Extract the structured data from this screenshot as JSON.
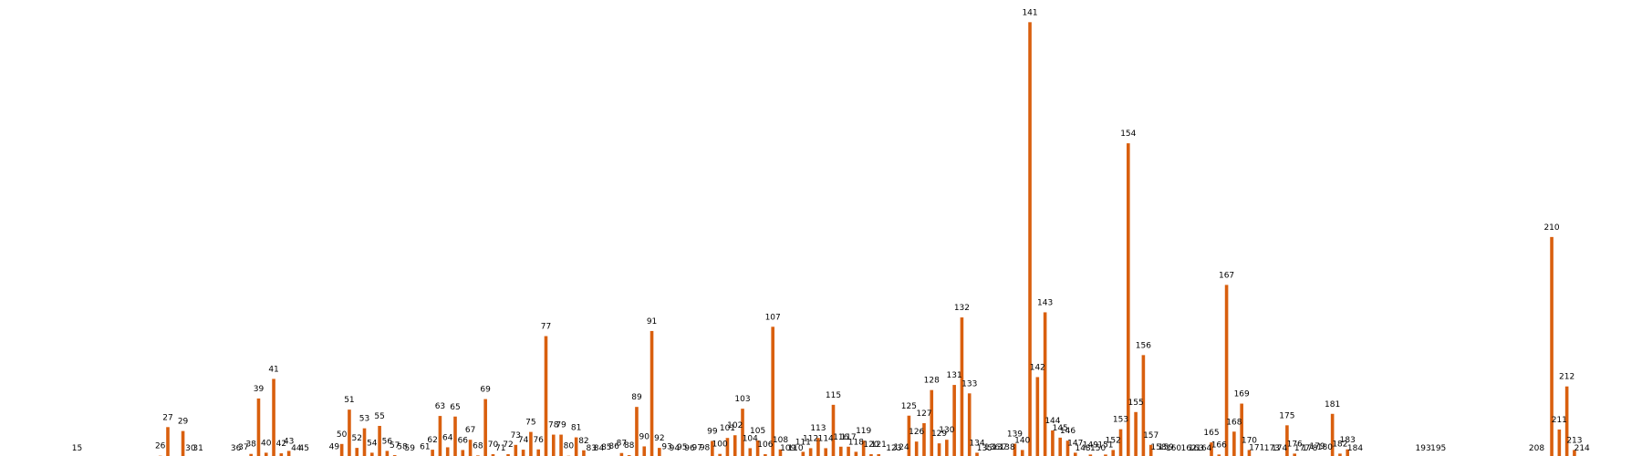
{
  "colors": {
    "bar": "#d95f0e",
    "background": "#ffffff",
    "label": "#000000"
  },
  "chart_data": {
    "type": "bar",
    "title": "",
    "xlabel": "",
    "ylabel": "",
    "ylim": [
      0,
      145
    ],
    "grid": false,
    "legend": "none",
    "points": [
      {
        "label": "15",
        "value": 0.3
      },
      {
        "label": "26",
        "value": 1.0
      },
      {
        "label": "27",
        "value": 10.5
      },
      {
        "label": "29",
        "value": 9.2
      },
      {
        "label": "30",
        "value": 0.1
      },
      {
        "label": "31",
        "value": 0.1
      },
      {
        "label": "36",
        "value": 0.1
      },
      {
        "label": "37",
        "value": 0.6
      },
      {
        "label": "38",
        "value": 1.6
      },
      {
        "label": "39",
        "value": 20.0
      },
      {
        "label": "40",
        "value": 2.0
      },
      {
        "label": "41",
        "value": 26.5
      },
      {
        "label": "42",
        "value": 1.8
      },
      {
        "label": "43",
        "value": 2.6
      },
      {
        "label": "44",
        "value": 0.3
      },
      {
        "label": "45",
        "value": 0.3
      },
      {
        "label": "49",
        "value": 0.7
      },
      {
        "label": "50",
        "value": 4.9
      },
      {
        "label": "51",
        "value": 16.3
      },
      {
        "label": "52",
        "value": 3.6
      },
      {
        "label": "53",
        "value": 10.1
      },
      {
        "label": "54",
        "value": 2.0
      },
      {
        "label": "55",
        "value": 10.9
      },
      {
        "label": "56",
        "value": 2.6
      },
      {
        "label": "57",
        "value": 1.2
      },
      {
        "label": "58",
        "value": 0.8
      },
      {
        "label": "59",
        "value": 0.1
      },
      {
        "label": "61",
        "value": 0.8
      },
      {
        "label": "62",
        "value": 3.0
      },
      {
        "label": "63",
        "value": 14.2
      },
      {
        "label": "64",
        "value": 3.8
      },
      {
        "label": "65",
        "value": 14.0
      },
      {
        "label": "66",
        "value": 2.9
      },
      {
        "label": "67",
        "value": 6.3
      },
      {
        "label": "68",
        "value": 1.1
      },
      {
        "label": "69",
        "value": 19.8
      },
      {
        "label": "70",
        "value": 1.5
      },
      {
        "label": "71",
        "value": 0.3
      },
      {
        "label": "72",
        "value": 1.5
      },
      {
        "label": "73",
        "value": 4.6
      },
      {
        "label": "74",
        "value": 3.0
      },
      {
        "label": "75",
        "value": 8.9
      },
      {
        "label": "76",
        "value": 3.1
      },
      {
        "label": "77",
        "value": 40.7
      },
      {
        "label": "78",
        "value": 8.0
      },
      {
        "label": "79",
        "value": 8.0
      },
      {
        "label": "80",
        "value": 1.0
      },
      {
        "label": "81",
        "value": 7.1
      },
      {
        "label": "82",
        "value": 2.8
      },
      {
        "label": "83",
        "value": 0.1
      },
      {
        "label": "84",
        "value": 0.1
      },
      {
        "label": "85",
        "value": 0.6
      },
      {
        "label": "86",
        "value": 0.9
      },
      {
        "label": "87",
        "value": 1.9
      },
      {
        "label": "88",
        "value": 1.2
      },
      {
        "label": "89",
        "value": 17.2
      },
      {
        "label": "90",
        "value": 4.1
      },
      {
        "label": "91",
        "value": 42.4
      },
      {
        "label": "92",
        "value": 3.6
      },
      {
        "label": "93",
        "value": 0.7
      },
      {
        "label": "94",
        "value": 0.3
      },
      {
        "label": "95",
        "value": 0.6
      },
      {
        "label": "96",
        "value": 0.1
      },
      {
        "label": "97",
        "value": 0.5
      },
      {
        "label": "98",
        "value": 0.5
      },
      {
        "label": "99",
        "value": 5.9
      },
      {
        "label": "100",
        "value": 1.6
      },
      {
        "label": "101",
        "value": 6.9
      },
      {
        "label": "102",
        "value": 7.8
      },
      {
        "label": "103",
        "value": 16.6
      },
      {
        "label": "104",
        "value": 3.5
      },
      {
        "label": "105",
        "value": 6.1
      },
      {
        "label": "106",
        "value": 1.5
      },
      {
        "label": "107",
        "value": 43.8
      },
      {
        "label": "108",
        "value": 3.1
      },
      {
        "label": "109",
        "value": 0.3
      },
      {
        "label": "110",
        "value": 0.3
      },
      {
        "label": "111",
        "value": 2.3
      },
      {
        "label": "112",
        "value": 3.5
      },
      {
        "label": "113",
        "value": 6.9
      },
      {
        "label": "114",
        "value": 3.5
      },
      {
        "label": "115",
        "value": 17.9
      },
      {
        "label": "116",
        "value": 4.0
      },
      {
        "label": "117",
        "value": 4.0
      },
      {
        "label": "118",
        "value": 2.3
      },
      {
        "label": "119",
        "value": 6.0
      },
      {
        "label": "120",
        "value": 1.5
      },
      {
        "label": "121",
        "value": 1.5
      },
      {
        "label": "123",
        "value": 0.3
      },
      {
        "label": "124",
        "value": 0.6
      },
      {
        "label": "125",
        "value": 14.3
      },
      {
        "label": "126",
        "value": 5.7
      },
      {
        "label": "127",
        "value": 11.8
      },
      {
        "label": "128",
        "value": 22.8
      },
      {
        "label": "129",
        "value": 5.1
      },
      {
        "label": "130",
        "value": 6.3
      },
      {
        "label": "131",
        "value": 24.5
      },
      {
        "label": "132",
        "value": 46.9
      },
      {
        "label": "133",
        "value": 21.7
      },
      {
        "label": "134",
        "value": 2.0
      },
      {
        "label": "135",
        "value": 0.3
      },
      {
        "label": "136",
        "value": 0.6
      },
      {
        "label": "137",
        "value": 0.6
      },
      {
        "label": "138",
        "value": 0.6
      },
      {
        "label": "139",
        "value": 5.0
      },
      {
        "label": "140",
        "value": 2.9
      },
      {
        "label": "141",
        "value": 144.9
      },
      {
        "label": "142",
        "value": 27.1
      },
      {
        "label": "143",
        "value": 48.6
      },
      {
        "label": "144",
        "value": 9.4
      },
      {
        "label": "145",
        "value": 7.0
      },
      {
        "label": "146",
        "value": 6.0
      },
      {
        "label": "147",
        "value": 2.0
      },
      {
        "label": "148",
        "value": 0.1
      },
      {
        "label": "149",
        "value": 1.4
      },
      {
        "label": "150",
        "value": 0.3
      },
      {
        "label": "151",
        "value": 1.4
      },
      {
        "label": "152",
        "value": 2.9
      },
      {
        "label": "153",
        "value": 9.8
      },
      {
        "label": "154",
        "value": 104.7
      },
      {
        "label": "155",
        "value": 15.5
      },
      {
        "label": "156",
        "value": 34.4
      },
      {
        "label": "157",
        "value": 4.6
      },
      {
        "label": "158",
        "value": 0.6
      },
      {
        "label": "159",
        "value": 0.6
      },
      {
        "label": "160",
        "value": 0.1
      },
      {
        "label": "162",
        "value": 0.3
      },
      {
        "label": "163",
        "value": 0.3
      },
      {
        "label": "164",
        "value": 0.3
      },
      {
        "label": "165",
        "value": 5.4
      },
      {
        "label": "166",
        "value": 1.4
      },
      {
        "label": "167",
        "value": 57.7
      },
      {
        "label": "168",
        "value": 9.0
      },
      {
        "label": "169",
        "value": 18.3
      },
      {
        "label": "170",
        "value": 2.9
      },
      {
        "label": "171",
        "value": 0.4
      },
      {
        "label": "173",
        "value": 0.1
      },
      {
        "label": "174",
        "value": 0.3
      },
      {
        "label": "175",
        "value": 11.1
      },
      {
        "label": "176",
        "value": 1.7
      },
      {
        "label": "177",
        "value": 0.3
      },
      {
        "label": "178",
        "value": 0.3
      },
      {
        "label": "179",
        "value": 0.9
      },
      {
        "label": "180",
        "value": 0.6
      },
      {
        "label": "181",
        "value": 14.9
      },
      {
        "label": "182",
        "value": 1.7
      },
      {
        "label": "183",
        "value": 3.1
      },
      {
        "label": "184",
        "value": 0.3
      },
      {
        "label": "193",
        "value": 0.1
      },
      {
        "label": "195",
        "value": 0.3
      },
      {
        "label": "208",
        "value": 0.1
      },
      {
        "label": "210",
        "value": 73.6
      },
      {
        "label": "211",
        "value": 9.7
      },
      {
        "label": "212",
        "value": 24.0
      },
      {
        "label": "213",
        "value": 2.9
      },
      {
        "label": "214",
        "value": 0.1
      }
    ]
  }
}
